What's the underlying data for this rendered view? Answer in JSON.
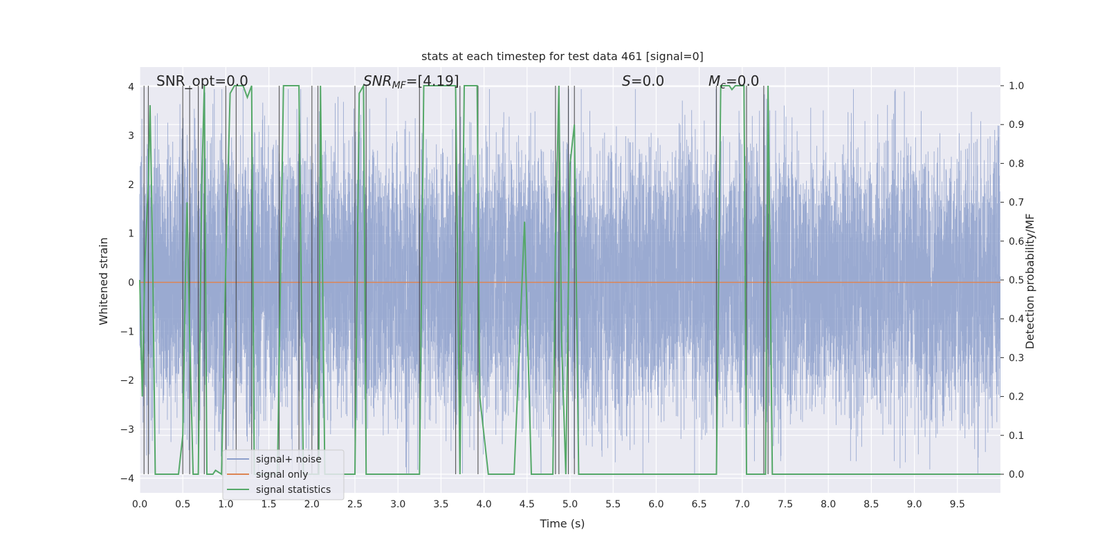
{
  "chart_data": {
    "type": "line",
    "title": "stats at each timestep for test data 461 [signal=0]",
    "xlabel": "Time (s)",
    "ylabel": "Whitened strain",
    "y2label": "Detection probability/MF",
    "xlim": [
      0,
      10
    ],
    "ylim": [
      -4.3,
      4.4
    ],
    "y2lim": [
      -0.048,
      1.048
    ],
    "grid": true,
    "legend_position": "lower-left",
    "x_ticks": [
      "0.0",
      "0.5",
      "1.0",
      "1.5",
      "2.0",
      "2.5",
      "3.0",
      "3.5",
      "4.0",
      "4.5",
      "5.0",
      "5.5",
      "6.0",
      "6.5",
      "7.0",
      "7.5",
      "8.0",
      "8.5",
      "9.0",
      "9.5"
    ],
    "y_ticks": [
      "−4",
      "−3",
      "−2",
      "−1",
      "0",
      "1",
      "2",
      "3",
      "4"
    ],
    "y2_ticks": [
      "0.0",
      "0.1",
      "0.2",
      "0.3",
      "0.4",
      "0.5",
      "0.6",
      "0.7",
      "0.8",
      "0.9",
      "1.0"
    ],
    "annotations": {
      "snr_opt": "SNR_opt=0.0",
      "snr_mf_var": "SNR",
      "snr_mf_sub": "MF",
      "snr_mf_val": "=[4.19]",
      "s_var": "S",
      "s_val": "=0.0",
      "mc_var": "M",
      "mc_sub": "c",
      "mc_val": "=0.0"
    },
    "series": [
      {
        "name": "signal+ noise",
        "color": "#8c9fcb",
        "description_range": [
          -4,
          4
        ]
      },
      {
        "name": "signal only",
        "color": "#dd8452",
        "values_constant": 0
      },
      {
        "name": "signal statistics",
        "color": "#55a868",
        "points": [
          [
            0.0,
            0.5
          ],
          [
            0.03,
            0.2
          ],
          [
            0.06,
            0.55
          ],
          [
            0.1,
            0.75
          ],
          [
            0.12,
            0.95
          ],
          [
            0.15,
            0.55
          ],
          [
            0.18,
            0.0
          ],
          [
            0.45,
            0.0
          ],
          [
            0.5,
            0.1
          ],
          [
            0.53,
            0.5
          ],
          [
            0.55,
            0.7
          ],
          [
            0.58,
            0.35
          ],
          [
            0.62,
            0.0
          ],
          [
            0.68,
            0.0
          ],
          [
            0.72,
            0.75
          ],
          [
            0.75,
            1.0
          ],
          [
            0.78,
            0.0
          ],
          [
            0.85,
            0.0
          ],
          [
            0.88,
            0.01
          ],
          [
            0.95,
            0.0
          ],
          [
            1.0,
            0.55
          ],
          [
            1.05,
            0.98
          ],
          [
            1.1,
            1.0
          ],
          [
            1.2,
            1.0
          ],
          [
            1.25,
            0.97
          ],
          [
            1.3,
            1.0
          ],
          [
            1.33,
            0.0
          ],
          [
            1.6,
            0.0
          ],
          [
            1.67,
            1.0
          ],
          [
            1.85,
            1.0
          ],
          [
            1.9,
            0.0
          ],
          [
            2.08,
            0.0
          ],
          [
            2.1,
            1.0
          ],
          [
            2.15,
            0.0
          ],
          [
            2.5,
            0.0
          ],
          [
            2.55,
            0.98
          ],
          [
            2.6,
            1.0
          ],
          [
            2.63,
            0.0
          ],
          [
            3.25,
            0.0
          ],
          [
            3.3,
            1.0
          ],
          [
            3.4,
            1.0
          ],
          [
            3.67,
            1.0
          ],
          [
            3.72,
            0.0
          ],
          [
            3.77,
            1.0
          ],
          [
            3.92,
            1.0
          ],
          [
            3.95,
            0.2
          ],
          [
            4.05,
            0.0
          ],
          [
            4.35,
            0.0
          ],
          [
            4.47,
            0.65
          ],
          [
            4.55,
            0.0
          ],
          [
            4.8,
            0.0
          ],
          [
            4.83,
            0.6
          ],
          [
            4.87,
            1.0
          ],
          [
            4.9,
            0.35
          ],
          [
            4.95,
            0.0
          ],
          [
            5.0,
            0.8
          ],
          [
            5.05,
            0.9
          ],
          [
            5.1,
            0.0
          ],
          [
            6.7,
            0.0
          ],
          [
            6.75,
            1.0
          ],
          [
            6.85,
            1.0
          ],
          [
            6.88,
            0.99
          ],
          [
            6.92,
            1.0
          ],
          [
            7.02,
            1.0
          ],
          [
            7.05,
            0.0
          ],
          [
            7.27,
            0.0
          ],
          [
            7.3,
            1.0
          ],
          [
            7.35,
            0.0
          ],
          [
            10.0,
            0.0
          ]
        ]
      }
    ],
    "vlines": [
      0.05,
      0.1,
      0.5,
      0.58,
      0.68,
      0.75,
      1.0,
      1.12,
      1.3,
      1.62,
      1.85,
      2.0,
      2.07,
      2.5,
      2.63,
      3.25,
      3.67,
      3.72,
      3.93,
      4.83,
      4.87,
      4.98,
      5.05,
      6.7,
      7.05,
      7.25,
      7.3
    ]
  }
}
